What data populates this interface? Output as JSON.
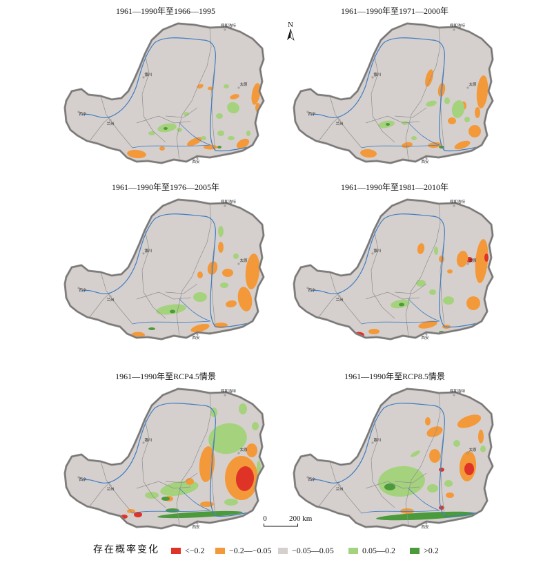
{
  "panels": [
    {
      "title": "1961—1990年至1966—1995"
    },
    {
      "title": "1961—1990年至1971—2000年"
    },
    {
      "title": "1961—1990年至1976—2005年"
    },
    {
      "title": "1961—1990年至1981—2010年"
    },
    {
      "title": "1961—1990年至RCP4.5情景"
    },
    {
      "title": "1961—1990年至RCP8.5情景"
    }
  ],
  "map_labels": {
    "north": "N",
    "cities": [
      "呼和浩特",
      "银川",
      "太原",
      "西宁",
      "兰州",
      "西安"
    ]
  },
  "scale_bar": {
    "start": "0",
    "end": "200 km"
  },
  "legend": {
    "title": "存在概率变化",
    "classes": [
      {
        "label": "<−0.2",
        "color": "#e03328"
      },
      {
        "label": "−0.2—−0.05",
        "color": "#f4993a"
      },
      {
        "label": "−0.05—0.05",
        "color": "#d5d0cd"
      },
      {
        "label": "0.05—0.2",
        "color": "#a5d27c"
      },
      {
        "label": ">0.2",
        "color": "#4b9a3c"
      }
    ]
  },
  "style_colors": {
    "boundary": "#8c8a89",
    "province_line": "#8f8f8f",
    "river": "#3e7cc4"
  }
}
